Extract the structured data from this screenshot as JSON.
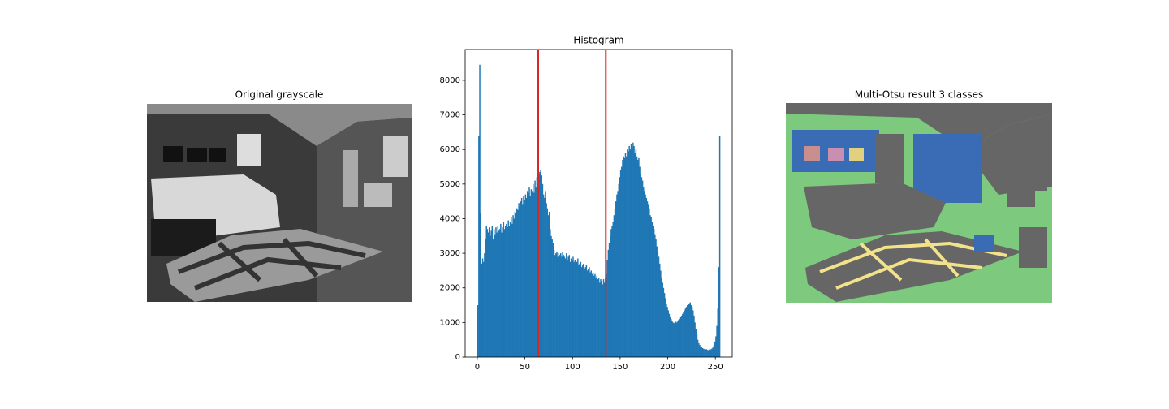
{
  "images": [
    {
      "title": "Original grayscale"
    },
    {
      "title": "Multi-Otsu result 3 classes"
    }
  ],
  "chart_data": {
    "type": "histogram",
    "title": "Histogram",
    "color": "#1f77b4",
    "bins": [
      0,
      1,
      2,
      3,
      4,
      5,
      6,
      7,
      8,
      9,
      10,
      11,
      12,
      13,
      14,
      15,
      16,
      17,
      18,
      19,
      20,
      21,
      22,
      23,
      24,
      25,
      26,
      27,
      28,
      29,
      30,
      31,
      32,
      33,
      34,
      35,
      36,
      37,
      38,
      39,
      40,
      41,
      42,
      43,
      44,
      45,
      46,
      47,
      48,
      49,
      50,
      51,
      52,
      53,
      54,
      55,
      56,
      57,
      58,
      59,
      60,
      61,
      62,
      63,
      64,
      65,
      66,
      67,
      68,
      69,
      70,
      71,
      72,
      73,
      74,
      75,
      76,
      77,
      78,
      79,
      80,
      81,
      82,
      83,
      84,
      85,
      86,
      87,
      88,
      89,
      90,
      91,
      92,
      93,
      94,
      95,
      96,
      97,
      98,
      99,
      100,
      101,
      102,
      103,
      104,
      105,
      106,
      107,
      108,
      109,
      110,
      111,
      112,
      113,
      114,
      115,
      116,
      117,
      118,
      119,
      120,
      121,
      122,
      123,
      124,
      125,
      126,
      127,
      128,
      129,
      130,
      131,
      132,
      133,
      134,
      135,
      136,
      137,
      138,
      139,
      140,
      141,
      142,
      143,
      144,
      145,
      146,
      147,
      148,
      149,
      150,
      151,
      152,
      153,
      154,
      155,
      156,
      157,
      158,
      159,
      160,
      161,
      162,
      163,
      164,
      165,
      166,
      167,
      168,
      169,
      170,
      171,
      172,
      173,
      174,
      175,
      176,
      177,
      178,
      179,
      180,
      181,
      182,
      183,
      184,
      185,
      186,
      187,
      188,
      189,
      190,
      191,
      192,
      193,
      194,
      195,
      196,
      197,
      198,
      199,
      200,
      201,
      202,
      203,
      204,
      205,
      206,
      207,
      208,
      209,
      210,
      211,
      212,
      213,
      214,
      215,
      216,
      217,
      218,
      219,
      220,
      221,
      222,
      223,
      224,
      225,
      226,
      227,
      228,
      229,
      230,
      231,
      232,
      233,
      234,
      235,
      236,
      237,
      238,
      239,
      240,
      241,
      242,
      243,
      244,
      245,
      246,
      247,
      248,
      249,
      250,
      251,
      252,
      253,
      254,
      255
    ],
    "values": [
      1500,
      6400,
      8450,
      4150,
      2700,
      2850,
      2750,
      3000,
      3400,
      3800,
      3700,
      3600,
      3750,
      3500,
      3650,
      3800,
      3400,
      3700,
      3550,
      3750,
      3600,
      3800,
      3650,
      3700,
      3850,
      3600,
      3750,
      3900,
      3700,
      3800,
      3850,
      3750,
      3950,
      3800,
      3900,
      4050,
      3850,
      4100,
      4000,
      4200,
      4150,
      4300,
      4250,
      4450,
      4350,
      4500,
      4600,
      4400,
      4650,
      4550,
      4700,
      4600,
      4800,
      4750,
      4900,
      4650,
      4850,
      4800,
      5000,
      4750,
      5100,
      4900,
      5200,
      5050,
      5300,
      5350,
      5400,
      5250,
      5000,
      4700,
      4600,
      4800,
      4450,
      4300,
      4100,
      4200,
      3700,
      3500,
      3400,
      3300,
      3100,
      2950,
      3000,
      3050,
      2900,
      3000,
      2950,
      3000,
      2900,
      3050,
      2950,
      2900,
      2850,
      3000,
      2800,
      2900,
      2950,
      2750,
      2850,
      2800,
      2900,
      2750,
      2800,
      2700,
      2750,
      2850,
      2650,
      2700,
      2750,
      2600,
      2650,
      2700,
      2550,
      2600,
      2650,
      2500,
      2550,
      2600,
      2450,
      2500,
      2400,
      2450,
      2350,
      2400,
      2300,
      2350,
      2250,
      2300,
      2150,
      2250,
      2200,
      2100,
      2250,
      2150,
      2300,
      2400,
      2800,
      3100,
      3300,
      3500,
      3700,
      3800,
      3900,
      4100,
      4300,
      4500,
      4700,
      4800,
      5000,
      5200,
      5400,
      5500,
      5700,
      5800,
      5750,
      5900,
      5800,
      6000,
      5950,
      6100,
      6000,
      6150,
      6050,
      6200,
      6100,
      5900,
      6000,
      5800,
      5700,
      5750,
      5500,
      5300,
      5200,
      5100,
      4900,
      4800,
      4700,
      4600,
      4500,
      4400,
      4300,
      4100,
      4050,
      3900,
      3800,
      3700,
      3550,
      3400,
      3200,
      3050,
      2900,
      2700,
      2500,
      2300,
      2150,
      2000,
      1850,
      1700,
      1550,
      1450,
      1350,
      1250,
      1150,
      1100,
      1050,
      1000,
      980,
      1000,
      1020,
      1000,
      1050,
      1080,
      1100,
      1150,
      1200,
      1250,
      1300,
      1350,
      1400,
      1450,
      1500,
      1520,
      1550,
      1580,
      1500,
      1450,
      1350,
      1200,
      1000,
      800,
      650,
      500,
      400,
      350,
      300,
      280,
      260,
      240,
      230,
      220,
      230,
      210,
      200,
      220,
      210,
      230,
      250,
      280,
      350,
      450,
      600,
      900,
      1400,
      2600,
      6400
    ],
    "thresholds": [
      64,
      135
    ],
    "threshold_color": "#d62728",
    "xlim": [
      -12.75,
      267.75
    ],
    "xticks": [
      0,
      50,
      100,
      150,
      200,
      250
    ],
    "ylim": [
      0,
      8890
    ],
    "yticks": [
      0,
      1000,
      2000,
      3000,
      4000,
      5000,
      6000,
      7000,
      8000
    ]
  }
}
